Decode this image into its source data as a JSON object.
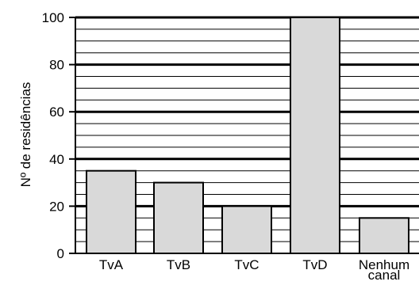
{
  "chart_data": {
    "type": "bar",
    "categories": [
      [
        "TvA"
      ],
      [
        "TvB"
      ],
      [
        "TvC"
      ],
      [
        "TvD"
      ],
      [
        "Nenhum",
        "canal"
      ]
    ],
    "values": [
      35,
      30,
      20,
      100,
      15
    ],
    "ylabel": "Nº de residências",
    "xlabel": "",
    "ylim": [
      0,
      100
    ],
    "yticks": [
      0,
      20,
      40,
      60,
      80,
      100
    ],
    "minor_grid_step": 5,
    "grid": true,
    "legend": "none"
  },
  "colors": {
    "bar_fill": "#d9d9d9",
    "bar_stroke": "#000000",
    "grid_major": "#000000",
    "grid_minor": "#000000",
    "background": "#ffffff"
  }
}
